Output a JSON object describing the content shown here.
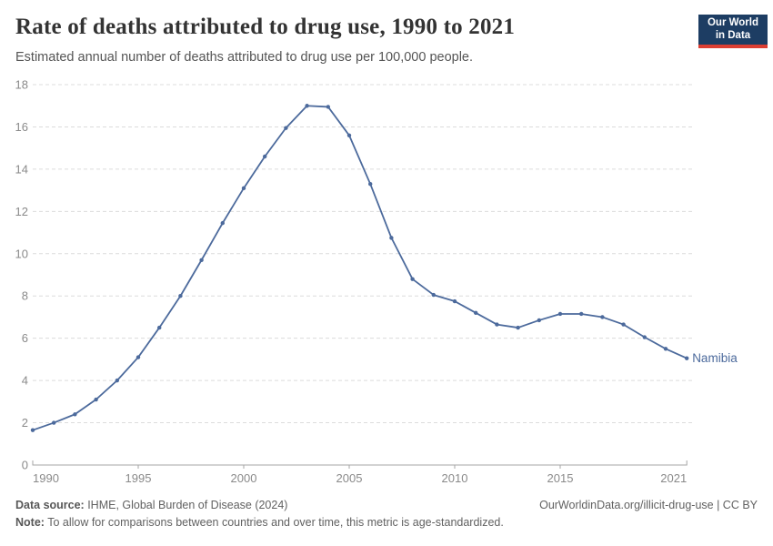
{
  "header": {
    "title": "Rate of deaths attributed to drug use, 1990 to 2021",
    "subtitle": "Estimated annual number of deaths attributed to drug use per 100,000 people.",
    "logo": {
      "line1": "Our World",
      "line2": "in Data"
    }
  },
  "chart_data": {
    "type": "line",
    "title": "Rate of deaths attributed to drug use, 1990 to 2021",
    "xlabel": "",
    "ylabel": "Estimated annual number of deaths attributed to drug use per 100,000 people",
    "x": [
      1990,
      1991,
      1992,
      1993,
      1994,
      1995,
      1996,
      1997,
      1998,
      1999,
      2000,
      2001,
      2002,
      2003,
      2004,
      2005,
      2006,
      2007,
      2008,
      2009,
      2010,
      2011,
      2012,
      2013,
      2014,
      2015,
      2016,
      2017,
      2018,
      2019,
      2020,
      2021
    ],
    "series": [
      {
        "name": "Namibia",
        "values": [
          1.65,
          2.0,
          2.4,
          3.1,
          4.0,
          5.1,
          6.5,
          8.0,
          9.7,
          11.45,
          13.1,
          14.6,
          15.95,
          17.0,
          16.95,
          15.6,
          13.3,
          10.75,
          8.8,
          8.05,
          7.75,
          7.2,
          6.65,
          6.5,
          6.85,
          7.15,
          7.15,
          7.0,
          6.65,
          6.05,
          5.5,
          5.05
        ]
      }
    ],
    "ylim": [
      0,
      18
    ],
    "yticks": [
      0,
      2,
      4,
      6,
      8,
      10,
      12,
      14,
      16,
      18
    ],
    "xticks": [
      1990,
      1995,
      2000,
      2005,
      2010,
      2015,
      2021
    ],
    "grid": "horizontal-dashed",
    "legend": "end-of-line-label"
  },
  "colors": {
    "line": "#4C6A9C",
    "grid": "#dcdcdc",
    "axis": "#a6a6a6",
    "tick_label": "#8a8a8a",
    "title": "#333333",
    "subtitle": "#555555",
    "footer": "#616161",
    "logo_bg": "#1d3d63",
    "logo_red": "#dc3e32"
  },
  "footer": {
    "source_label": "Data source:",
    "source_value": " IHME, Global Burden of Disease (2024)",
    "link_text": "OurWorldinData.org/illicit-drug-use | CC BY",
    "note_label": "Note:",
    "note_value": " To allow for comparisons between countries and over time, this metric is age-standardized."
  }
}
